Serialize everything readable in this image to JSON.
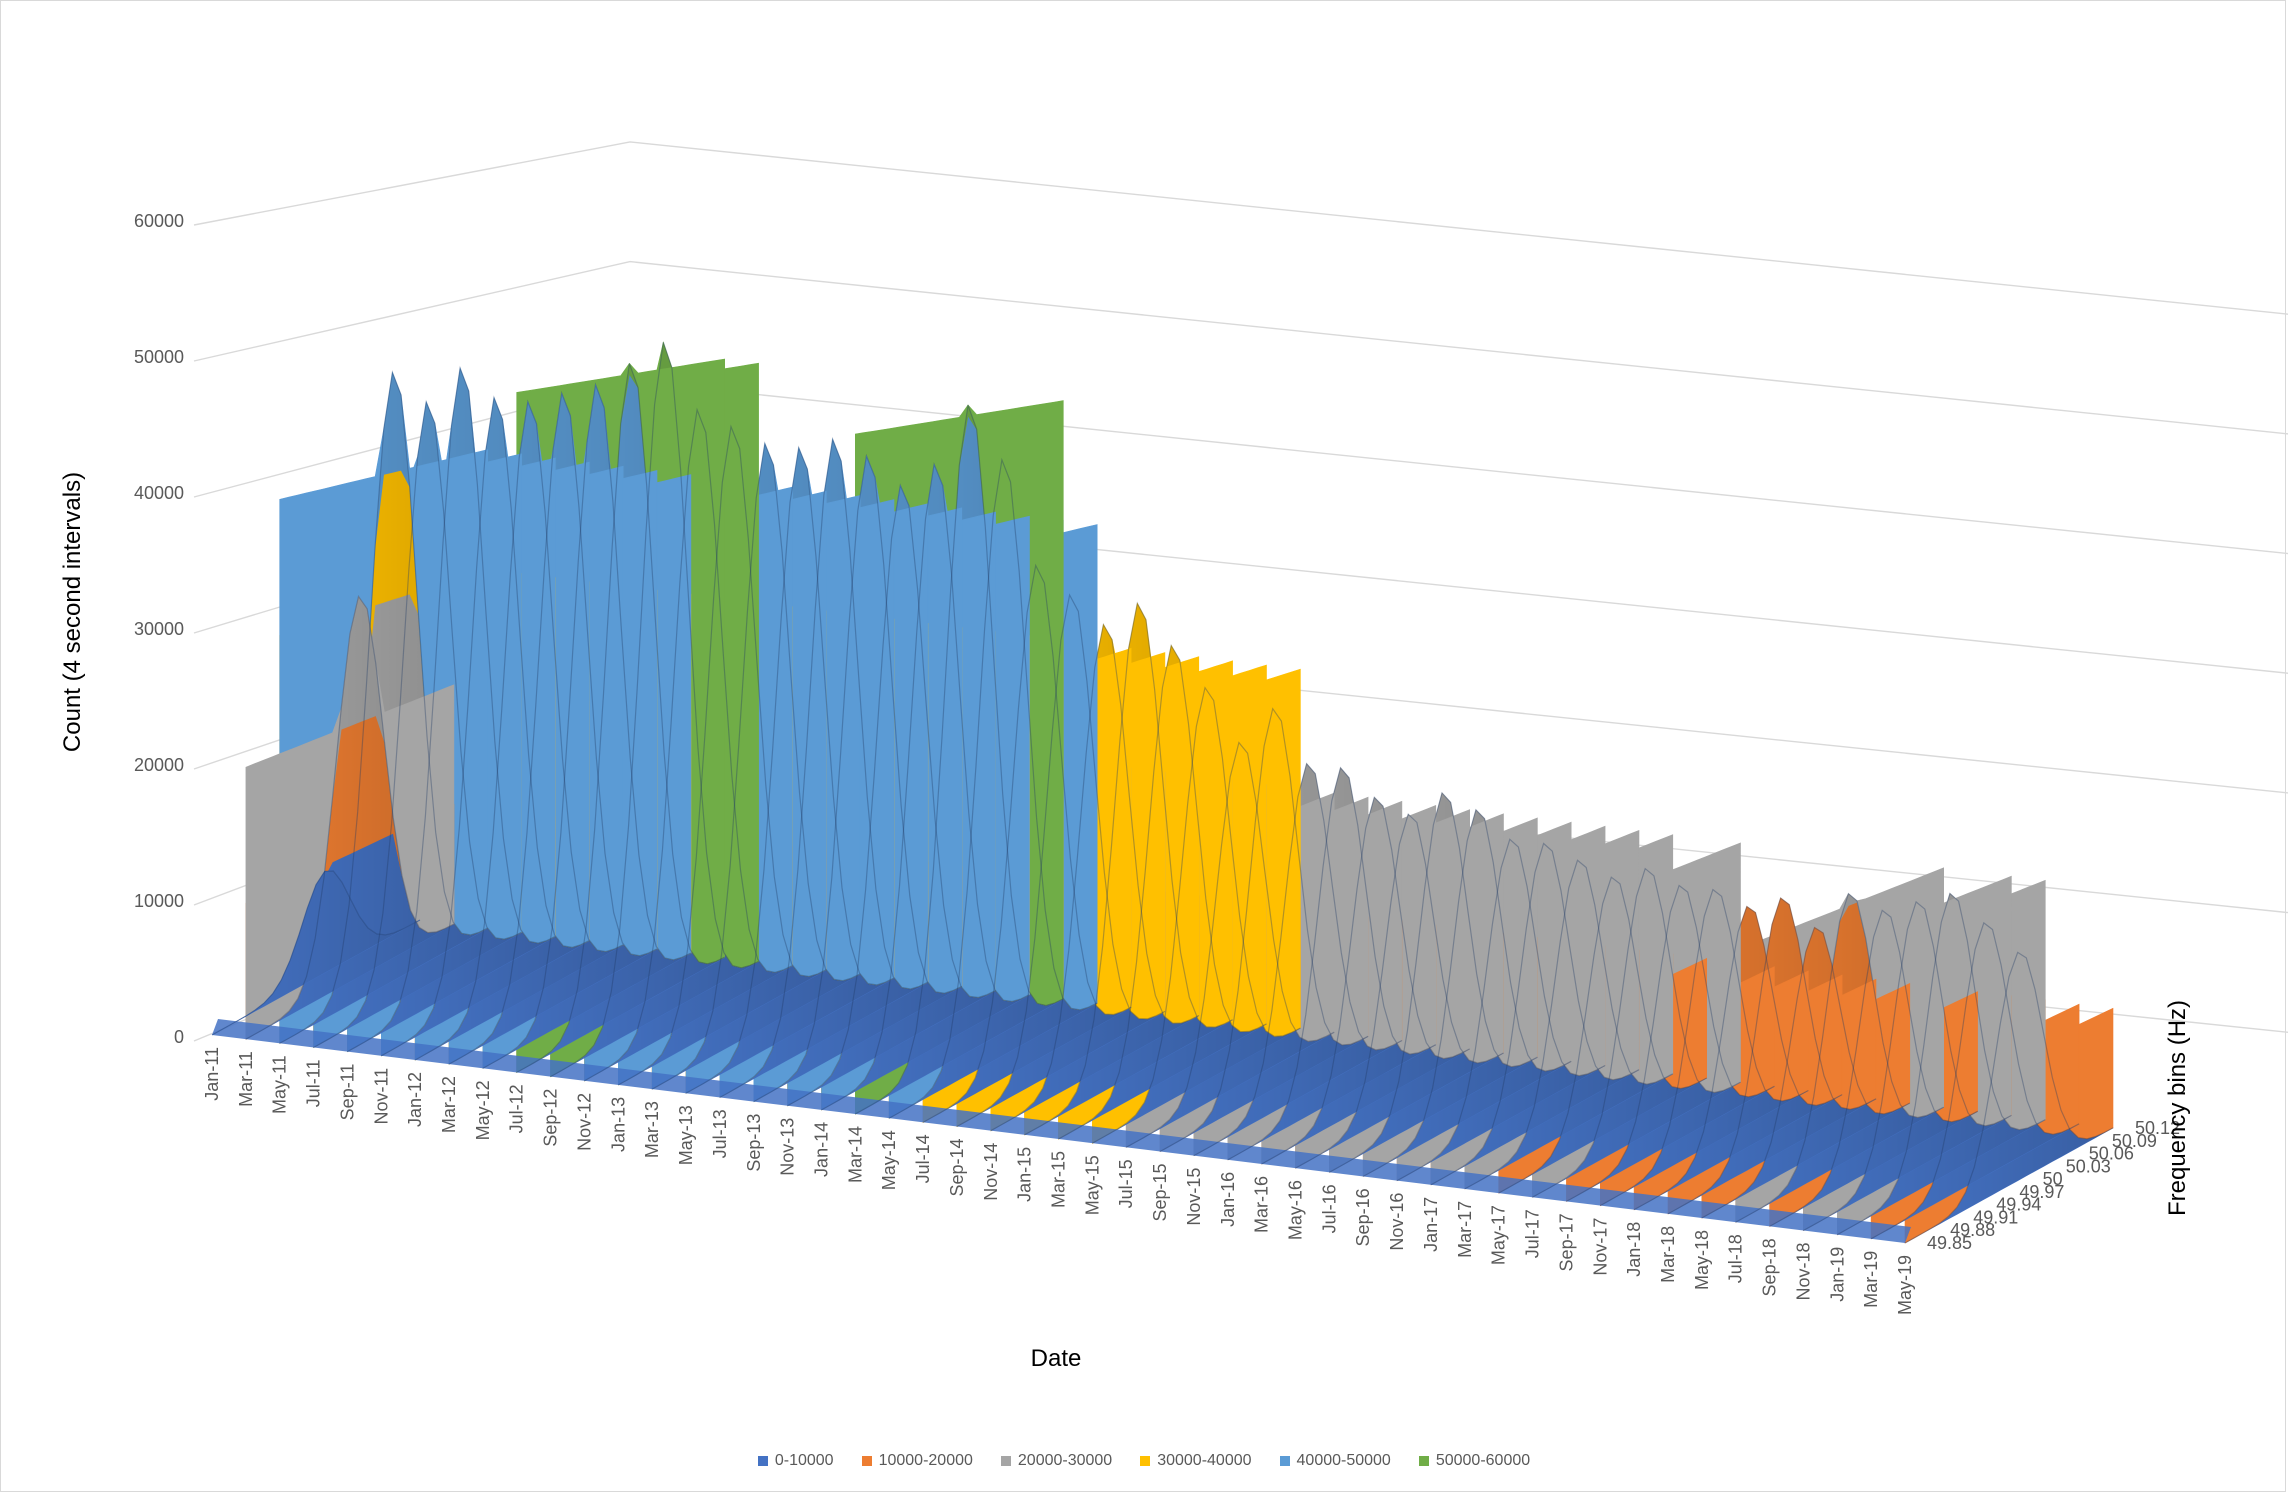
{
  "chart_data": {
    "type": "surface",
    "title": "",
    "xlabel": "Date",
    "ylabel": "Count (4 second intervals)",
    "zlabel": "Frequency bins (Hz)",
    "y_ticks": [
      0,
      10000,
      20000,
      30000,
      40000,
      50000,
      60000
    ],
    "ylim": [
      0,
      60000
    ],
    "x_tick_labels": [
      "Jan-11",
      "Mar-11",
      "May-11",
      "Jul-11",
      "Sep-11",
      "Nov-11",
      "Jan-12",
      "Mar-12",
      "May-12",
      "Jul-12",
      "Sep-12",
      "Nov-12",
      "Jan-13",
      "Mar-13",
      "May-13",
      "Jul-13",
      "Sep-13",
      "Nov-13",
      "Jan-14",
      "Mar-14",
      "May-14",
      "Jul-14",
      "Sep-14",
      "Nov-14",
      "Jan-15",
      "Mar-15",
      "May-15",
      "Jul-15",
      "Sep-15",
      "Nov-15",
      "Jan-16",
      "Mar-16",
      "May-16",
      "Jul-16",
      "Sep-16",
      "Nov-16",
      "Jan-17",
      "Mar-17",
      "May-17",
      "Jul-17",
      "Sep-17",
      "Nov-17",
      "Jan-18",
      "Mar-18",
      "May-18",
      "Jul-18",
      "Sep-18",
      "Nov-18",
      "Jan-19",
      "Mar-19",
      "May-19"
    ],
    "depth_tick_labels": [
      "49.85",
      "49.88",
      "49.91",
      "49.94",
      "49.97",
      "50",
      "50.03",
      "50.06",
      "50.09",
      "50.12"
    ],
    "grid": true,
    "legend_position": "bottom",
    "bands": [
      {
        "name": "0-10000",
        "color": "#4472c4"
      },
      {
        "name": "10000-20000",
        "color": "#ed7d31"
      },
      {
        "name": "20000-30000",
        "color": "#a5a5a5"
      },
      {
        "name": "30000-40000",
        "color": "#ffc000"
      },
      {
        "name": "40000-50000",
        "color": "#5b9bd5"
      },
      {
        "name": "50000-60000",
        "color": "#70ad47"
      }
    ],
    "peak_series": {
      "name": "",
      "frequency": "50",
      "dates": [
        "Jan-11",
        "Mar-11",
        "May-11",
        "Jul-11",
        "Sep-11",
        "Nov-11",
        "Jan-12",
        "Mar-12",
        "May-12",
        "Jul-12",
        "Sep-12",
        "Nov-12",
        "Jan-13",
        "Mar-13",
        "May-13",
        "Jul-13",
        "Sep-13",
        "Nov-13",
        "Jan-14",
        "Mar-14",
        "May-14",
        "Jul-14",
        "Sep-14",
        "Nov-14",
        "Jan-15",
        "Mar-15",
        "May-15",
        "Jul-15",
        "Sep-15",
        "Nov-15",
        "Jan-16",
        "Mar-16",
        "May-16",
        "Jul-16",
        "Sep-16",
        "Nov-16",
        "Jan-17",
        "Mar-17",
        "May-17",
        "Jul-17",
        "Sep-17",
        "Nov-17",
        "Jan-18",
        "Mar-18",
        "May-18",
        "Jul-18",
        "Sep-18",
        "Nov-18",
        "Jan-19",
        "Mar-19",
        "May-19"
      ],
      "values": [
        8000,
        30000,
        48000,
        46000,
        49000,
        47000,
        47000,
        48000,
        49000,
        51000,
        53000,
        48000,
        47000,
        46000,
        46000,
        47000,
        46000,
        44000,
        46000,
        51000,
        47000,
        39000,
        37000,
        35000,
        37000,
        34000,
        31000,
        27000,
        30000,
        26000,
        26000,
        24000,
        23000,
        25000,
        24000,
        22000,
        22000,
        21000,
        20000,
        21000,
        20000,
        20000,
        19000,
        20000,
        18000,
        21000,
        20000,
        21000,
        22000,
        20000,
        18000
      ]
    }
  }
}
